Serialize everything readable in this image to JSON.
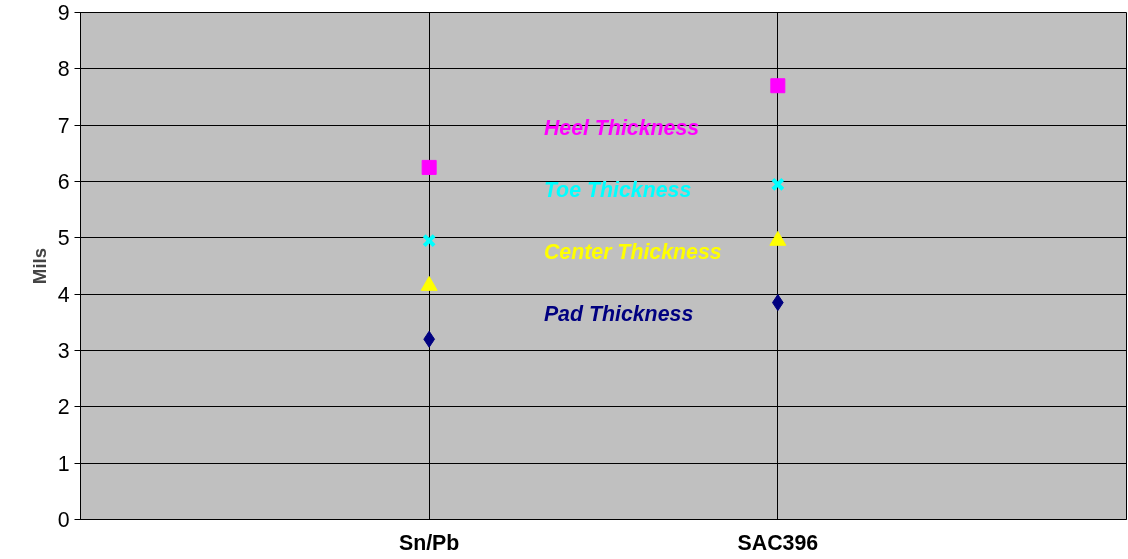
{
  "chart_data": {
    "type": "scatter",
    "ylabel": "Mils",
    "categories": [
      "Sn/Pb",
      "SAC396"
    ],
    "ylim": [
      0,
      9
    ],
    "yticks": [
      0,
      1,
      2,
      3,
      4,
      5,
      6,
      7,
      8,
      9
    ],
    "grid": true,
    "legend": false,
    "series": [
      {
        "name": "Heel Thickness",
        "color": "#ff00ff",
        "marker": "square",
        "values": [
          6.25,
          7.7
        ]
      },
      {
        "name": "Toe Thickness",
        "color": "#00ffff",
        "marker": "cross",
        "values": [
          4.95,
          5.95
        ]
      },
      {
        "name": "Center Thickness",
        "color": "#ffff00",
        "marker": "triangle",
        "values": [
          4.15,
          4.95
        ]
      },
      {
        "name": "Pad Thickness",
        "color": "#000080",
        "marker": "diamond",
        "values": [
          3.2,
          3.85
        ]
      }
    ]
  }
}
